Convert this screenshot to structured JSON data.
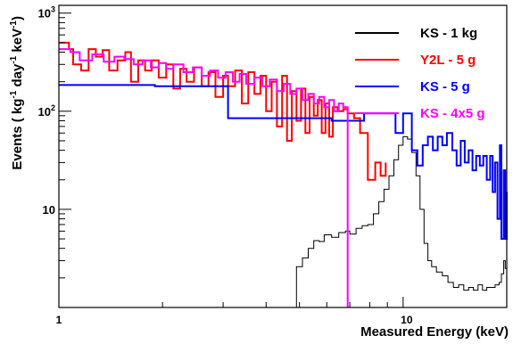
{
  "chart_data": {
    "type": "line",
    "xlabel": "Measured Energy (keV)",
    "ylabel_parts": [
      "Events ( kg",
      "-1",
      " day",
      "-1",
      " keV",
      "-1",
      ")"
    ],
    "x_scale": "log",
    "y_scale": "log",
    "xlim": [
      1,
      20
    ],
    "ylim": [
      1,
      1200
    ],
    "x_tick_labels": [
      {
        "value": 1,
        "label": "1"
      },
      {
        "value": 10,
        "label": "10"
      }
    ],
    "y_tick_labels": [
      {
        "value": 10,
        "base": "10",
        "exp": ""
      },
      {
        "value": 100,
        "base": "10",
        "exp": "2"
      },
      {
        "value": 1000,
        "base": "10",
        "exp": "3"
      }
    ],
    "legend_position": "top-right",
    "series": [
      {
        "name": "KS - 1 kg",
        "color": "#000000",
        "line_width": 1,
        "points": [
          [
            4.9,
            1
          ],
          [
            4.9,
            2.6
          ],
          [
            5.1,
            3.2
          ],
          [
            5.3,
            4.0
          ],
          [
            5.5,
            4.8
          ],
          [
            5.7,
            4.7
          ],
          [
            5.9,
            5.5
          ],
          [
            6.2,
            5.2
          ],
          [
            6.5,
            5.8
          ],
          [
            6.8,
            6.0
          ],
          [
            7.0,
            5.6
          ],
          [
            7.3,
            6.4
          ],
          [
            7.6,
            6.8
          ],
          [
            7.9,
            7.0
          ],
          [
            8.2,
            9.0
          ],
          [
            8.5,
            12
          ],
          [
            8.8,
            16
          ],
          [
            9.1,
            22
          ],
          [
            9.4,
            32
          ],
          [
            9.7,
            45
          ],
          [
            10.0,
            55
          ],
          [
            10.3,
            52
          ],
          [
            10.6,
            38
          ],
          [
            10.9,
            22
          ],
          [
            11.2,
            10
          ],
          [
            11.5,
            4.5
          ],
          [
            11.8,
            3.0
          ],
          [
            12.1,
            2.6
          ],
          [
            12.5,
            2.3
          ],
          [
            13.0,
            2.1
          ],
          [
            13.5,
            1.8
          ],
          [
            14.0,
            1.6
          ],
          [
            14.5,
            1.7
          ],
          [
            15.0,
            1.5
          ],
          [
            15.5,
            1.6
          ],
          [
            16.0,
            1.5
          ],
          [
            16.5,
            1.7
          ],
          [
            17.0,
            1.5
          ],
          [
            17.5,
            1.6
          ],
          [
            18.0,
            1.6
          ],
          [
            18.5,
            1.7
          ],
          [
            19.0,
            1.8
          ],
          [
            19.3,
            2.2
          ],
          [
            19.6,
            3.0
          ],
          [
            19.8,
            2.5
          ],
          [
            20.0,
            1.8
          ]
        ]
      },
      {
        "name": "Y2L - 5 g",
        "color": "#ff0000",
        "line_width": 2,
        "points": [
          [
            1.0,
            500
          ],
          [
            1.07,
            430
          ],
          [
            1.1,
            300
          ],
          [
            1.16,
            260
          ],
          [
            1.22,
            430
          ],
          [
            1.28,
            360
          ],
          [
            1.34,
            420
          ],
          [
            1.4,
            260
          ],
          [
            1.48,
            330
          ],
          [
            1.56,
            400
          ],
          [
            1.62,
            200
          ],
          [
            1.7,
            330
          ],
          [
            1.78,
            260
          ],
          [
            1.86,
            330
          ],
          [
            1.95,
            220
          ],
          [
            2.05,
            300
          ],
          [
            2.15,
            170
          ],
          [
            2.25,
            270
          ],
          [
            2.35,
            200
          ],
          [
            2.47,
            280
          ],
          [
            2.6,
            180
          ],
          [
            2.72,
            250
          ],
          [
            2.85,
            140
          ],
          [
            3.0,
            230
          ],
          [
            3.1,
            180
          ],
          [
            3.25,
            260
          ],
          [
            3.4,
            120
          ],
          [
            3.55,
            250
          ],
          [
            3.7,
            150
          ],
          [
            3.85,
            230
          ],
          [
            4.0,
            100
          ],
          [
            4.15,
            200
          ],
          [
            4.3,
            70
          ],
          [
            4.45,
            230
          ],
          [
            4.6,
            50
          ],
          [
            4.75,
            160
          ],
          [
            4.9,
            80
          ],
          [
            5.05,
            170
          ],
          [
            5.2,
            60
          ],
          [
            5.35,
            140
          ],
          [
            5.5,
            90
          ],
          [
            5.65,
            130
          ],
          [
            5.8,
            60
          ],
          [
            5.95,
            120
          ],
          [
            6.1,
            55
          ],
          [
            6.25,
            110
          ],
          [
            6.45,
            100
          ],
          [
            6.7,
            105
          ],
          [
            6.9,
            95
          ],
          [
            7.2,
            85
          ],
          [
            7.5,
            60
          ],
          [
            7.9,
            20
          ],
          [
            8.3,
            30
          ],
          [
            8.6,
            22
          ],
          [
            8.9,
            30
          ]
        ]
      },
      {
        "name": "KS - 5 g",
        "color": "#0000ff",
        "line_width": 2,
        "points": [
          [
            1.0,
            185
          ],
          [
            1.9,
            180
          ],
          [
            3.1,
            180
          ],
          [
            3.1,
            85
          ],
          [
            4.4,
            85
          ],
          [
            5.6,
            85
          ],
          [
            6.2,
            80
          ],
          [
            7.5,
            80
          ],
          [
            7.7,
            95
          ],
          [
            9.2,
            95
          ],
          [
            9.5,
            60
          ],
          [
            10.0,
            95
          ],
          [
            10.6,
            95
          ],
          [
            10.6,
            40
          ],
          [
            11.0,
            28
          ],
          [
            11.4,
            45
          ],
          [
            11.8,
            55
          ],
          [
            12.2,
            40
          ],
          [
            12.6,
            55
          ],
          [
            13.0,
            45
          ],
          [
            13.4,
            60
          ],
          [
            13.9,
            40
          ],
          [
            14.3,
            28
          ],
          [
            14.7,
            50
          ],
          [
            15.1,
            30
          ],
          [
            15.5,
            40
          ],
          [
            15.9,
            25
          ],
          [
            16.3,
            35
          ],
          [
            16.7,
            28
          ],
          [
            17.1,
            35
          ],
          [
            17.5,
            20
          ],
          [
            17.9,
            35
          ],
          [
            18.2,
            15
          ],
          [
            18.5,
            30
          ],
          [
            18.8,
            8
          ],
          [
            19.1,
            45
          ],
          [
            19.3,
            5
          ],
          [
            19.6,
            25
          ],
          [
            19.8,
            5
          ],
          [
            20.0,
            15
          ]
        ]
      },
      {
        "name": "KS - 4x5 g",
        "color": "#ff00ff",
        "line_width": 2,
        "points": [
          [
            1.0,
            430
          ],
          [
            1.08,
            400
          ],
          [
            1.15,
            330
          ],
          [
            1.25,
            380
          ],
          [
            1.35,
            320
          ],
          [
            1.45,
            360
          ],
          [
            1.55,
            340
          ],
          [
            1.65,
            300
          ],
          [
            1.75,
            330
          ],
          [
            1.85,
            280
          ],
          [
            1.95,
            310
          ],
          [
            2.05,
            270
          ],
          [
            2.15,
            300
          ],
          [
            2.3,
            250
          ],
          [
            2.45,
            280
          ],
          [
            2.6,
            230
          ],
          [
            2.75,
            260
          ],
          [
            2.9,
            220
          ],
          [
            3.05,
            250
          ],
          [
            3.2,
            200
          ],
          [
            3.35,
            240
          ],
          [
            3.5,
            190
          ],
          [
            3.7,
            220
          ],
          [
            3.9,
            180
          ],
          [
            4.1,
            210
          ],
          [
            4.3,
            160
          ],
          [
            4.5,
            190
          ],
          [
            4.7,
            150
          ],
          [
            4.9,
            170
          ],
          [
            5.1,
            130
          ],
          [
            5.3,
            150
          ],
          [
            5.5,
            120
          ],
          [
            5.7,
            140
          ],
          [
            5.9,
            110
          ],
          [
            6.1,
            130
          ],
          [
            6.3,
            100
          ],
          [
            6.5,
            120
          ],
          [
            6.7,
            110
          ],
          [
            6.9,
            100
          ],
          [
            6.9,
            1
          ]
        ]
      }
    ]
  }
}
